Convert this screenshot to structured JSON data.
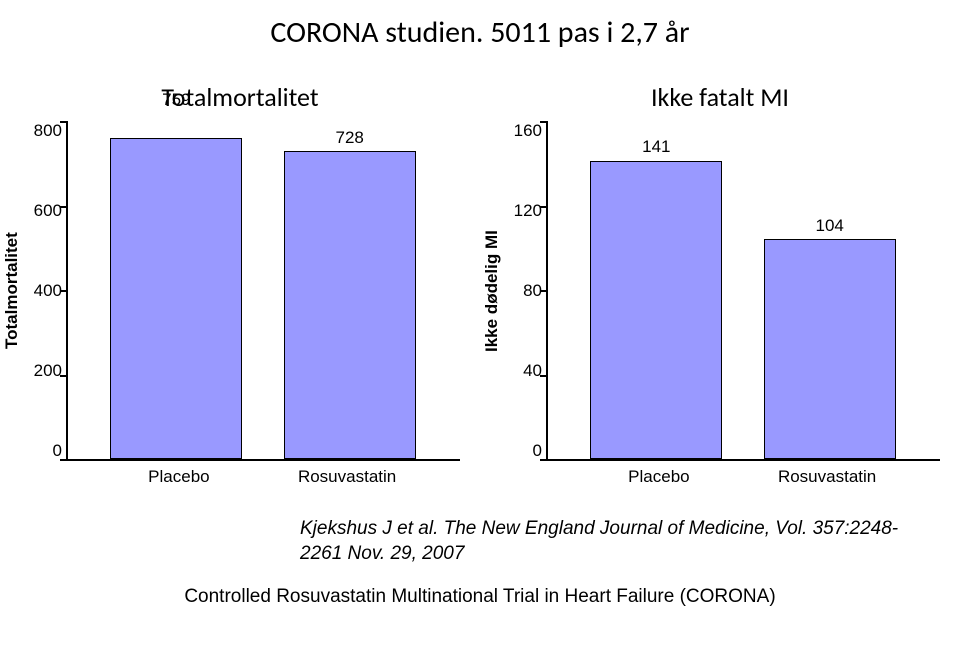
{
  "title": "CORONA studien. 5011 pas i 2,7 år",
  "left_chart": {
    "type": "bar",
    "title": "Totalmortalitet",
    "ylabel": "Totalmortalitet",
    "ymax": 800,
    "yticks": [
      800,
      600,
      400,
      200,
      0
    ],
    "categories": [
      "Placebo",
      "Rosuvastatin"
    ],
    "values": [
      759,
      728
    ],
    "bar_color": "#9999ff",
    "bar_border": "#000000",
    "value_label_offsets": [
      -48,
      -24
    ],
    "background_color": "#ffffff",
    "axis_color": "#000000",
    "font_family": "Arial",
    "title_fontsize": 26,
    "label_fontsize": 17,
    "tick_fontsize": 17
  },
  "right_chart": {
    "type": "bar",
    "title": "Ikke fatalt MI",
    "ylabel": "Ikke dødelig MI",
    "ymax": 160,
    "yticks": [
      160,
      120,
      80,
      40,
      0
    ],
    "categories": [
      "Placebo",
      "Rosuvastatin"
    ],
    "values": [
      141,
      104
    ],
    "bar_color": "#9999ff",
    "bar_border": "#000000",
    "value_label_offsets": [
      -24,
      -24
    ],
    "background_color": "#ffffff",
    "axis_color": "#000000",
    "font_family": "Arial",
    "title_fontsize": 26,
    "label_fontsize": 17,
    "tick_fontsize": 17
  },
  "citation": {
    "line1": "Kjekshus J et al. The New England Journal of Medicine, Vol. 357:2248-2261  Nov. 29, 2007",
    "line2": "Controlled Rosuvastatin Multinational Trial in Heart Failure (CORONA)"
  }
}
